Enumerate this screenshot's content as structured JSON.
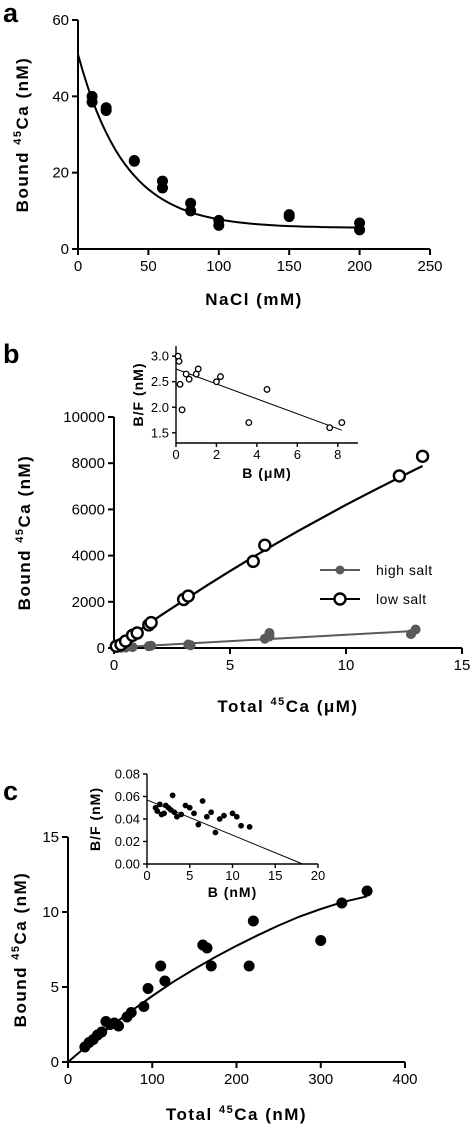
{
  "chart_data": [
    {
      "panel": "a",
      "type": "scatter",
      "xlabel": "NaCl (mM)",
      "ylabel_parts": [
        "Bound ",
        "45",
        "Ca (nM)"
      ],
      "xlim": [
        0,
        250
      ],
      "ylim": [
        0,
        60
      ],
      "xticks": [
        0,
        50,
        100,
        150,
        200,
        250
      ],
      "yticks": [
        0,
        20,
        40,
        60
      ],
      "series": [
        {
          "points": [
            [
              10,
              40
            ],
            [
              10,
              38.5
            ],
            [
              20,
              37
            ],
            [
              20,
              36.3
            ],
            [
              40,
              23
            ],
            [
              40,
              23.2
            ],
            [
              60,
              17.8
            ],
            [
              60,
              16
            ],
            [
              80,
              12
            ],
            [
              80,
              10
            ],
            [
              100,
              7.5
            ],
            [
              100,
              6.2
            ],
            [
              150,
              9
            ],
            [
              150,
              8.5
            ],
            [
              200,
              6.8
            ],
            [
              200,
              5
            ]
          ],
          "fit": {
            "model": "exponential-decay",
            "y0": 51,
            "plateau": 5.5,
            "k": 0.03,
            "x_range": [
              0,
              200
            ]
          }
        }
      ]
    },
    {
      "panel": "b",
      "type": "scatter",
      "xlabel_parts": [
        "Total ",
        "45",
        "Ca (μM)"
      ],
      "ylabel_parts": [
        "Bound ",
        "45",
        "Ca (nM)"
      ],
      "xlim": [
        0,
        15
      ],
      "ylim": [
        0,
        10000
      ],
      "xticks": [
        0,
        5,
        10,
        15
      ],
      "yticks": [
        0,
        2000,
        4000,
        6000,
        8000,
        10000
      ],
      "legend_position": "right",
      "series": [
        {
          "name": "high salt",
          "marker": "filled",
          "color": "#5a5a5a",
          "points": [
            [
              0.3,
              10
            ],
            [
              0.5,
              20
            ],
            [
              0.8,
              40
            ],
            [
              1.5,
              80
            ],
            [
              1.6,
              100
            ],
            [
              3.2,
              150
            ],
            [
              3.3,
              120
            ],
            [
              6.5,
              400
            ],
            [
              6.7,
              500
            ],
            [
              6.7,
              650
            ],
            [
              12.8,
              600
            ],
            [
              13,
              800
            ]
          ],
          "fit": {
            "model": "line",
            "x_range": [
              0.1,
              13
            ],
            "y_range": [
              20,
              740
            ]
          }
        },
        {
          "name": "low salt",
          "marker": "open",
          "color": "#000000",
          "points": [
            [
              0.1,
              80
            ],
            [
              0.3,
              150
            ],
            [
              0.5,
              300
            ],
            [
              0.8,
              550
            ],
            [
              1.0,
              650
            ],
            [
              1.5,
              1000
            ],
            [
              1.6,
              1100
            ],
            [
              3.0,
              2100
            ],
            [
              3.2,
              2250
            ],
            [
              6.0,
              3750
            ],
            [
              6.5,
              4450
            ],
            [
              12.3,
              7450
            ],
            [
              13.3,
              8300
            ]
          ],
          "fit": {
            "model": "saturating",
            "x_range": [
              0,
              13.3
            ],
            "points": [
              [
                0,
                0
              ],
              [
                1,
                700
              ],
              [
                2,
                1400
              ],
              [
                3,
                2050
              ],
              [
                4,
                2700
              ],
              [
                5,
                3330
              ],
              [
                6,
                3940
              ],
              [
                7,
                4530
              ],
              [
                8,
                5100
              ],
              [
                9,
                5650
              ],
              [
                10,
                6200
              ],
              [
                11,
                6720
              ],
              [
                12,
                7230
              ],
              [
                13,
                7730
              ],
              [
                13.3,
                7880
              ]
            ]
          }
        }
      ],
      "inset": {
        "type": "scatter",
        "xlabel": "B (μM)",
        "ylabel": "B/F (nM)",
        "xlim": [
          0,
          9
        ],
        "ylim": [
          1.3,
          3.2
        ],
        "xticks": [
          0,
          2,
          4,
          6,
          8
        ],
        "yticks": [
          1.5,
          2.0,
          2.5,
          3.0
        ],
        "ytick_labels": [
          "1.5",
          "2.0",
          "2.5",
          "3.0"
        ],
        "marker": "open",
        "points": [
          [
            0.1,
            3.0
          ],
          [
            0.15,
            2.9
          ],
          [
            0.2,
            2.45
          ],
          [
            0.3,
            1.95
          ],
          [
            0.5,
            2.65
          ],
          [
            0.65,
            2.55
          ],
          [
            1.0,
            2.65
          ],
          [
            1.1,
            2.75
          ],
          [
            2.0,
            2.5
          ],
          [
            2.2,
            2.6
          ],
          [
            3.6,
            1.7
          ],
          [
            4.5,
            2.35
          ],
          [
            7.6,
            1.6
          ],
          [
            8.2,
            1.7
          ]
        ],
        "fit": {
          "model": "line",
          "x_range": [
            0,
            8.2
          ],
          "y_range": [
            2.75,
            1.55
          ]
        }
      }
    },
    {
      "panel": "c",
      "type": "scatter",
      "xlabel_parts": [
        "Total ",
        "45",
        "Ca (nM)"
      ],
      "ylabel_parts": [
        "Bound ",
        "45",
        "Ca (nM)"
      ],
      "xlim": [
        0,
        400
      ],
      "ylim": [
        0,
        15
      ],
      "xticks": [
        0,
        100,
        200,
        300,
        400
      ],
      "yticks": [
        0,
        5,
        10,
        15
      ],
      "series": [
        {
          "marker": "filled",
          "color": "#000000",
          "points": [
            [
              20,
              1
            ],
            [
              25,
              1.3
            ],
            [
              30,
              1.5
            ],
            [
              35,
              1.8
            ],
            [
              40,
              2.0
            ],
            [
              45,
              2.7
            ],
            [
              50,
              2.5
            ],
            [
              55,
              2.6
            ],
            [
              60,
              2.4
            ],
            [
              70,
              3
            ],
            [
              75,
              3.3
            ],
            [
              90,
              3.7
            ],
            [
              95,
              4.9
            ],
            [
              110,
              6.4
            ],
            [
              115,
              5.4
            ],
            [
              160,
              7.8
            ],
            [
              165,
              7.6
            ],
            [
              170,
              6.4
            ],
            [
              215,
              6.4
            ],
            [
              220,
              9.4
            ],
            [
              300,
              8.1
            ],
            [
              325,
              10.6
            ],
            [
              355,
              11.4
            ]
          ],
          "fit": {
            "model": "saturating",
            "x_range": [
              0,
              355
            ],
            "points": [
              [
                0,
                0
              ],
              [
                25,
                1.2
              ],
              [
                50,
                2.35
              ],
              [
                75,
                3.4
              ],
              [
                100,
                4.4
              ],
              [
                125,
                5.35
              ],
              [
                150,
                6.2
              ],
              [
                175,
                7.0
              ],
              [
                200,
                7.75
              ],
              [
                225,
                8.45
              ],
              [
                250,
                9.1
              ],
              [
                275,
                9.7
              ],
              [
                300,
                10.2
              ],
              [
                325,
                10.65
              ],
              [
                355,
                11.05
              ]
            ]
          }
        }
      ],
      "inset": {
        "type": "scatter",
        "xlabel": "B (nM)",
        "ylabel": "B/F (nM)",
        "xlim": [
          0,
          20
        ],
        "ylim": [
          0,
          0.08
        ],
        "xticks": [
          0,
          5,
          10,
          15,
          20
        ],
        "yticks": [
          0,
          0.02,
          0.04,
          0.06,
          0.08
        ],
        "ytick_labels": [
          "0.00",
          "0.02",
          "0.04",
          "0.06",
          "0.08"
        ],
        "marker": "filled",
        "points": [
          [
            1.0,
            0.05
          ],
          [
            1.2,
            0.047
          ],
          [
            1.5,
            0.053
          ],
          [
            1.7,
            0.044
          ],
          [
            2.0,
            0.045
          ],
          [
            2.2,
            0.052
          ],
          [
            2.5,
            0.05
          ],
          [
            2.8,
            0.048
          ],
          [
            3.0,
            0.061
          ],
          [
            3.2,
            0.046
          ],
          [
            3.5,
            0.042
          ],
          [
            4.0,
            0.044
          ],
          [
            4.5,
            0.052
          ],
          [
            5.0,
            0.05
          ],
          [
            5.5,
            0.045
          ],
          [
            6.0,
            0.035
          ],
          [
            6.5,
            0.056
          ],
          [
            7.0,
            0.042
          ],
          [
            7.5,
            0.046
          ],
          [
            8.0,
            0.028
          ],
          [
            8.5,
            0.04
          ],
          [
            9.0,
            0.043
          ],
          [
            10.0,
            0.045
          ],
          [
            10.5,
            0.042
          ],
          [
            11.0,
            0.034
          ],
          [
            12.0,
            0.033
          ]
        ],
        "fit": {
          "model": "line",
          "x_range": [
            0,
            18.2
          ],
          "y_range": [
            0.057,
            0.0
          ]
        }
      }
    }
  ]
}
